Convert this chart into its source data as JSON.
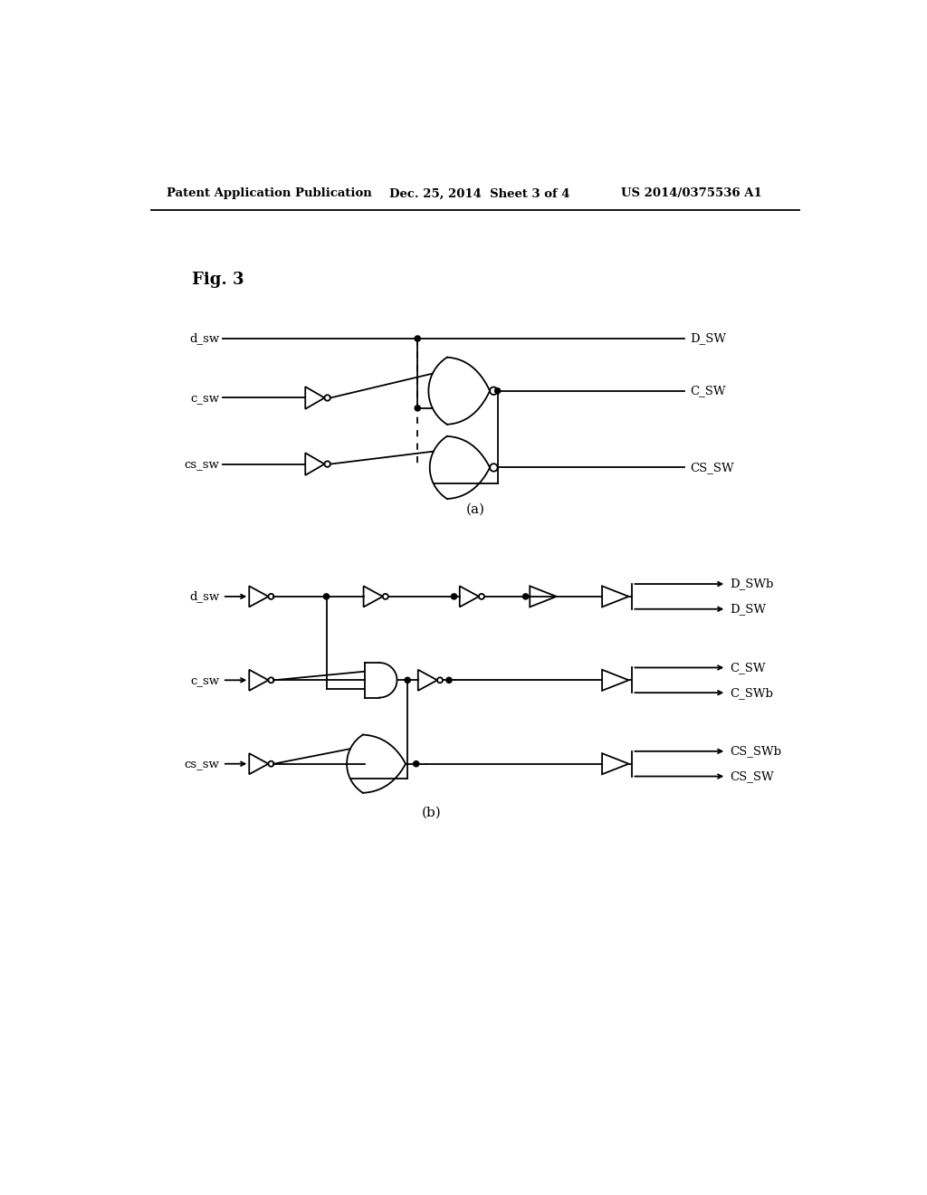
{
  "bg_color": "#ffffff",
  "line_color": "#000000",
  "header_left": "Patent Application Publication",
  "header_mid": "Dec. 25, 2014  Sheet 3 of 4",
  "header_right": "US 2014/0375536 A1",
  "fig_label": "Fig. 3",
  "caption_a": "(a)",
  "caption_b": "(b)",
  "lw": 1.3
}
